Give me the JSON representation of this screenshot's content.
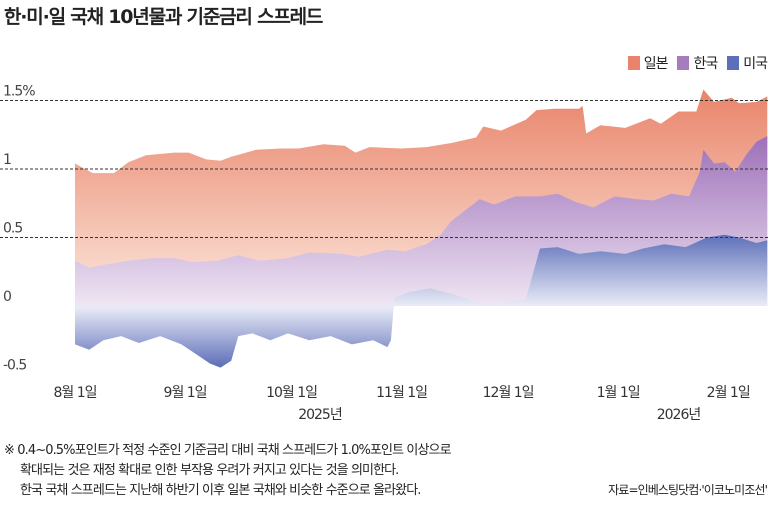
{
  "chart_data": {
    "type": "area",
    "title": "한·미·일 국채 10년물과 기준금리 스프레드",
    "x_unit": "days since 2025-08-01",
    "ylim": [
      -0.5,
      1.6
    ],
    "grid": true,
    "legend_position": "top-right",
    "y_ticks": [
      {
        "value": 1.5,
        "label": "1.5%"
      },
      {
        "value": 1,
        "label": "1"
      },
      {
        "value": 0.5,
        "label": "0.5"
      },
      {
        "value": 0,
        "label": "0"
      },
      {
        "value": -0.5,
        "label": "-0.5"
      }
    ],
    "x_ticks": [
      {
        "day": 0,
        "label": "8월 1일"
      },
      {
        "day": 31,
        "label": "9월 1일"
      },
      {
        "day": 61,
        "label": "10월 1일"
      },
      {
        "day": 92,
        "label": "11월 1일"
      },
      {
        "day": 122,
        "label": "12월 1일"
      },
      {
        "day": 153,
        "label": "1월 1일"
      },
      {
        "day": 184,
        "label": "2월 1일"
      }
    ],
    "year_labels": [
      {
        "day": 69,
        "label": "2025년"
      },
      {
        "day": 170,
        "label": "2026년"
      }
    ],
    "series": [
      {
        "name": "일본",
        "color": "#e9846a",
        "points": [
          [
            0,
            1.04
          ],
          [
            5,
            0.97
          ],
          [
            11,
            0.97
          ],
          [
            15,
            1.05
          ],
          [
            20,
            1.1
          ],
          [
            28,
            1.12
          ],
          [
            32,
            1.12
          ],
          [
            37,
            1.07
          ],
          [
            41,
            1.06
          ],
          [
            44,
            1.09
          ],
          [
            51,
            1.14
          ],
          [
            58,
            1.15
          ],
          [
            63,
            1.15
          ],
          [
            70,
            1.18
          ],
          [
            76,
            1.17
          ],
          [
            79,
            1.12
          ],
          [
            83,
            1.16
          ],
          [
            92,
            1.15
          ],
          [
            99,
            1.16
          ],
          [
            106,
            1.19
          ],
          [
            113,
            1.23
          ],
          [
            115,
            1.31
          ],
          [
            120,
            1.28
          ],
          [
            127,
            1.36
          ],
          [
            130,
            1.43
          ],
          [
            135,
            1.44
          ],
          [
            142,
            1.44
          ],
          [
            143,
            1.46
          ],
          [
            144,
            1.26
          ],
          [
            148,
            1.32
          ],
          [
            155,
            1.3
          ],
          [
            162,
            1.37
          ],
          [
            165,
            1.33
          ],
          [
            170,
            1.42
          ],
          [
            175,
            1.42
          ],
          [
            177,
            1.58
          ],
          [
            180,
            1.49
          ],
          [
            185,
            1.52
          ],
          [
            187,
            1.48
          ],
          [
            192,
            1.49
          ],
          [
            195,
            1.53
          ]
        ]
      },
      {
        "name": "한국",
        "color": "#a57cbc",
        "points": [
          [
            0,
            0.33
          ],
          [
            4,
            0.28
          ],
          [
            8,
            0.3
          ],
          [
            15,
            0.33
          ],
          [
            22,
            0.35
          ],
          [
            28,
            0.35
          ],
          [
            33,
            0.32
          ],
          [
            40,
            0.33
          ],
          [
            46,
            0.37
          ],
          [
            52,
            0.33
          ],
          [
            60,
            0.35
          ],
          [
            66,
            0.39
          ],
          [
            75,
            0.38
          ],
          [
            80,
            0.36
          ],
          [
            88,
            0.41
          ],
          [
            93,
            0.4
          ],
          [
            99,
            0.45
          ],
          [
            103,
            0.52
          ],
          [
            106,
            0.62
          ],
          [
            110,
            0.7
          ],
          [
            114,
            0.78
          ],
          [
            118,
            0.74
          ],
          [
            124,
            0.8
          ],
          [
            131,
            0.8
          ],
          [
            136,
            0.82
          ],
          [
            141,
            0.76
          ],
          [
            146,
            0.72
          ],
          [
            152,
            0.8
          ],
          [
            158,
            0.78
          ],
          [
            163,
            0.77
          ],
          [
            168,
            0.82
          ],
          [
            173,
            0.8
          ],
          [
            176,
            0.98
          ],
          [
            177,
            1.14
          ],
          [
            180,
            1.04
          ],
          [
            183,
            1.05
          ],
          [
            186,
            0.98
          ],
          [
            189,
            1.1
          ],
          [
            192,
            1.2
          ],
          [
            195,
            1.24
          ]
        ]
      },
      {
        "name": "미국",
        "color": "#5b6fba",
        "points": [
          [
            0,
            -0.28
          ],
          [
            4,
            -0.32
          ],
          [
            8,
            -0.25
          ],
          [
            13,
            -0.22
          ],
          [
            18,
            -0.27
          ],
          [
            24,
            -0.22
          ],
          [
            30,
            -0.28
          ],
          [
            34,
            -0.35
          ],
          [
            38,
            -0.42
          ],
          [
            41,
            -0.45
          ],
          [
            44,
            -0.4
          ],
          [
            46,
            -0.22
          ],
          [
            50,
            -0.2
          ],
          [
            55,
            -0.25
          ],
          [
            60,
            -0.2
          ],
          [
            66,
            -0.25
          ],
          [
            72,
            -0.22
          ],
          [
            78,
            -0.28
          ],
          [
            84,
            -0.25
          ],
          [
            88,
            -0.3
          ],
          [
            89,
            -0.25
          ],
          [
            90,
            0.06
          ],
          [
            94,
            0.1
          ],
          [
            100,
            0.13
          ],
          [
            106,
            0.09
          ],
          [
            112,
            0.04
          ],
          [
            117,
            0.0
          ],
          [
            122,
            0.03
          ],
          [
            127,
            0.05
          ],
          [
            131,
            0.42
          ],
          [
            136,
            0.43
          ],
          [
            142,
            0.38
          ],
          [
            148,
            0.4
          ],
          [
            155,
            0.38
          ],
          [
            160,
            0.42
          ],
          [
            166,
            0.45
          ],
          [
            172,
            0.43
          ],
          [
            178,
            0.5
          ],
          [
            183,
            0.52
          ],
          [
            187,
            0.5
          ],
          [
            192,
            0.46
          ],
          [
            195,
            0.48
          ]
        ]
      }
    ],
    "note": [
      "※ 0.4~0.5%포인트가 적정 수준인 기준금리 대비 국채 스프레드가 1.0%포인트 이상으로",
      "확대되는 것은 재정 확대로 인한 부작용 우려가 커지고 있다는 것을 의미한다.",
      "한국 국채 스프레드는 지난해 하반기 이후 일본 국채와 비슷한 수준으로 올라왔다."
    ],
    "source": "자료=인베스팅닷컴·'이코노미조선'"
  }
}
